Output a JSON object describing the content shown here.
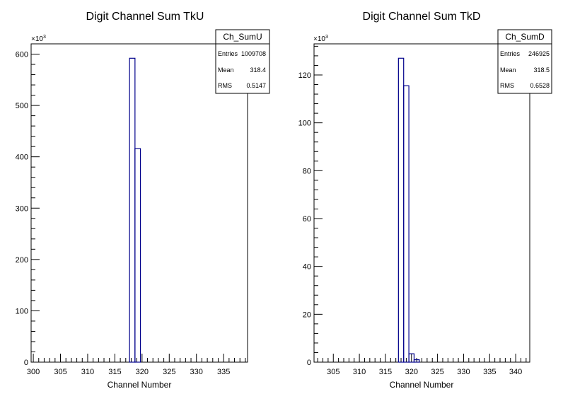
{
  "chart_data": [
    {
      "type": "bar",
      "title": "Digit Channel Sum TkU",
      "xlabel": "Channel Number",
      "ylabel": "",
      "y_multiplier": "×10",
      "y_multiplier_exp": "3",
      "xlim": [
        299.6,
        339.4
      ],
      "ylim": [
        0,
        620
      ],
      "xticks": [
        300,
        305,
        310,
        315,
        320,
        325,
        330,
        335
      ],
      "yticks": [
        0,
        100,
        200,
        300,
        400,
        500,
        600
      ],
      "bins": [
        {
          "x0": 317.7,
          "x1": 318.7,
          "value": 592
        },
        {
          "x0": 318.7,
          "x1": 319.7,
          "value": 416
        }
      ],
      "stats": {
        "name": "Ch_SumU",
        "rows": [
          {
            "label": "Entries",
            "value": "1009708"
          },
          {
            "label": "Mean",
            "value": "318.4"
          },
          {
            "label": "RMS",
            "value": "0.5147"
          }
        ]
      },
      "line_color": "#00008b"
    },
    {
      "type": "bar",
      "title": "Digit Channel Sum TkD",
      "xlabel": "Channel Number",
      "ylabel": "",
      "y_multiplier": "×10",
      "y_multiplier_exp": "3",
      "xlim": [
        301.3,
        342.7
      ],
      "ylim": [
        0,
        133
      ],
      "xticks": [
        305,
        310,
        315,
        320,
        325,
        330,
        335,
        340
      ],
      "yticks": [
        0,
        20,
        40,
        60,
        80,
        100,
        120
      ],
      "bins": [
        {
          "x0": 317.5,
          "x1": 318.5,
          "value": 127
        },
        {
          "x0": 318.5,
          "x1": 319.5,
          "value": 115.5
        },
        {
          "x0": 319.5,
          "x1": 320.5,
          "value": 3.5
        },
        {
          "x0": 320.5,
          "x1": 321.5,
          "value": 1
        }
      ],
      "stats": {
        "name": "Ch_SumD",
        "rows": [
          {
            "label": "Entries",
            "value": "246925"
          },
          {
            "label": "Mean",
            "value": "318.5"
          },
          {
            "label": "RMS",
            "value": "0.6528"
          }
        ]
      },
      "line_color": "#00008b"
    }
  ]
}
